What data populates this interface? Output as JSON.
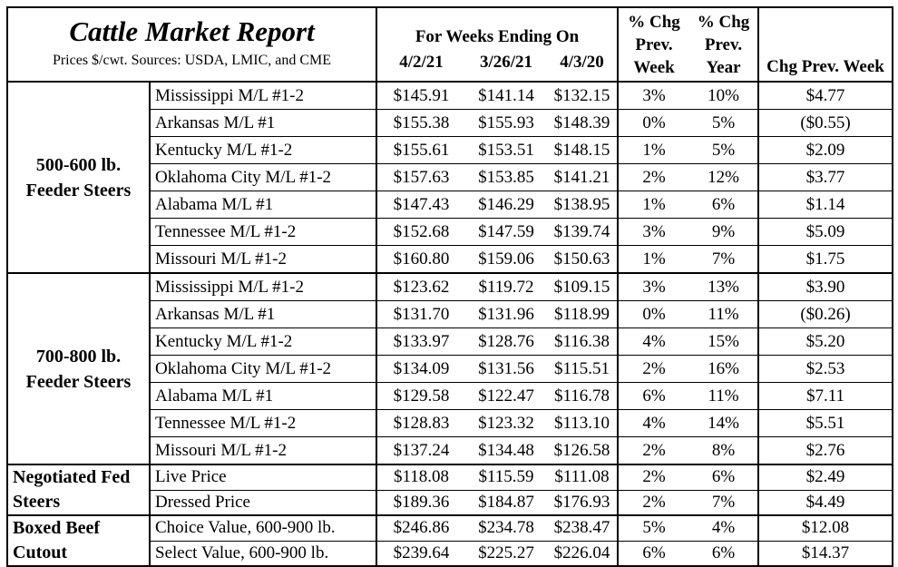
{
  "header": {
    "title": "Cattle Market Report",
    "subtitle": "Prices $/cwt. Sources: USDA, LMIC, and CME",
    "weeks_label": "For Weeks Ending On",
    "date_cols": [
      "4/2/21",
      "3/26/21",
      "4/3/20"
    ],
    "pct_week_label": [
      "% Chg",
      "Prev.",
      "Week"
    ],
    "pct_year_label": [
      "% Chg",
      "Prev.",
      "Year"
    ],
    "chg_label": "Chg Prev. Week"
  },
  "groups": [
    {
      "label": [
        "500-600 lb.",
        "Feeder Steers"
      ],
      "rows": [
        {
          "name": "Mississippi M/L #1-2",
          "d1": "$145.91",
          "d2": "$141.14",
          "d3": "$132.15",
          "pw": "3%",
          "py": "10%",
          "chg": "$4.77"
        },
        {
          "name": "Arkansas M/L #1",
          "d1": "$155.38",
          "d2": "$155.93",
          "d3": "$148.39",
          "pw": "0%",
          "py": "5%",
          "chg": "($0.55)"
        },
        {
          "name": "Kentucky M/L #1-2",
          "d1": "$155.61",
          "d2": "$153.51",
          "d3": "$148.15",
          "pw": "1%",
          "py": "5%",
          "chg": "$2.09"
        },
        {
          "name": "Oklahoma City M/L #1-2",
          "d1": "$157.63",
          "d2": "$153.85",
          "d3": "$141.21",
          "pw": "2%",
          "py": "12%",
          "chg": "$3.77"
        },
        {
          "name": "Alabama M/L #1",
          "d1": "$147.43",
          "d2": "$146.29",
          "d3": "$138.95",
          "pw": "1%",
          "py": "6%",
          "chg": "$1.14"
        },
        {
          "name": "Tennessee M/L #1-2",
          "d1": "$152.68",
          "d2": "$147.59",
          "d3": "$139.74",
          "pw": "3%",
          "py": "9%",
          "chg": "$5.09"
        },
        {
          "name": "Missouri M/L #1-2",
          "d1": "$160.80",
          "d2": "$159.06",
          "d3": "$150.63",
          "pw": "1%",
          "py": "7%",
          "chg": "$1.75"
        }
      ]
    },
    {
      "label": [
        "700-800 lb.",
        "Feeder Steers"
      ],
      "rows": [
        {
          "name": "Mississippi M/L #1-2",
          "d1": "$123.62",
          "d2": "$119.72",
          "d3": "$109.15",
          "pw": "3%",
          "py": "13%",
          "chg": "$3.90"
        },
        {
          "name": "Arkansas M/L #1",
          "d1": "$131.70",
          "d2": "$131.96",
          "d3": "$118.99",
          "pw": "0%",
          "py": "11%",
          "chg": "($0.26)"
        },
        {
          "name": "Kentucky M/L #1-2",
          "d1": "$133.97",
          "d2": "$128.76",
          "d3": "$116.38",
          "pw": "4%",
          "py": "15%",
          "chg": "$5.20"
        },
        {
          "name": "Oklahoma City M/L #1-2",
          "d1": "$134.09",
          "d2": "$131.56",
          "d3": "$115.51",
          "pw": "2%",
          "py": "16%",
          "chg": "$2.53"
        },
        {
          "name": "Alabama M/L #1",
          "d1": "$129.58",
          "d2": "$122.47",
          "d3": "$116.78",
          "pw": "6%",
          "py": "11%",
          "chg": "$7.11"
        },
        {
          "name": "Tennessee M/L #1-2",
          "d1": "$128.83",
          "d2": "$123.32",
          "d3": "$113.10",
          "pw": "4%",
          "py": "14%",
          "chg": "$5.51"
        },
        {
          "name": "Missouri M/L #1-2",
          "d1": "$137.24",
          "d2": "$134.48",
          "d3": "$126.58",
          "pw": "2%",
          "py": "8%",
          "chg": "$2.76"
        }
      ]
    },
    {
      "label": [
        "Negotiated Fed",
        "Steers"
      ],
      "rows": [
        {
          "name": "Live Price",
          "d1": "$118.08",
          "d2": "$115.59",
          "d3": "$111.08",
          "pw": "2%",
          "py": "6%",
          "chg": "$2.49"
        },
        {
          "name": "Dressed Price",
          "d1": "$189.36",
          "d2": "$184.87",
          "d3": "$176.93",
          "pw": "2%",
          "py": "7%",
          "chg": "$4.49"
        }
      ]
    },
    {
      "label": [
        "Boxed Beef",
        "Cutout"
      ],
      "rows": [
        {
          "name": "Choice Value, 600-900 lb.",
          "d1": "$246.86",
          "d2": "$234.78",
          "d3": "$238.47",
          "pw": "5%",
          "py": "4%",
          "chg": "$12.08"
        },
        {
          "name": "Select Value, 600-900 lb.",
          "d1": "$239.64",
          "d2": "$225.27",
          "d3": "$226.04",
          "pw": "6%",
          "py": "6%",
          "chg": "$14.37"
        }
      ]
    }
  ]
}
